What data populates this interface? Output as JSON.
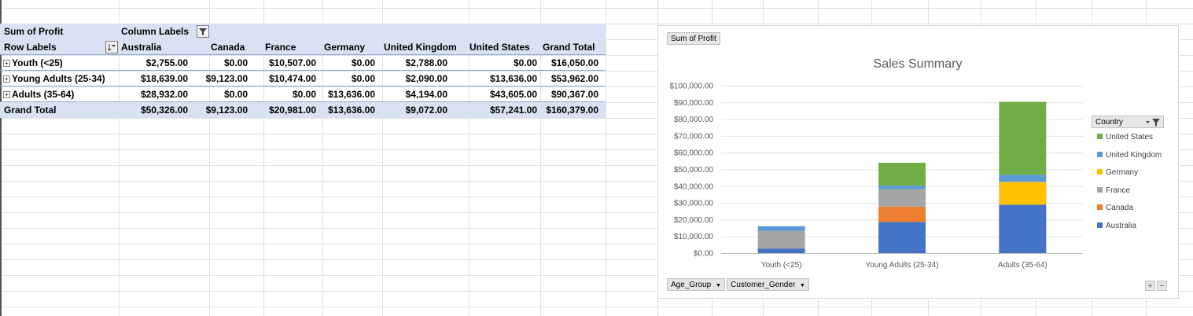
{
  "pivot": {
    "value_label": "Sum of  Profit",
    "column_labels": "Column Labels",
    "row_labels": "Row Labels",
    "columns": [
      "Australia",
      "Canada",
      "France",
      "Germany",
      "United Kingdom",
      "United States",
      "Grand Total"
    ],
    "rows": [
      {
        "label": "Youth (<25)",
        "values": [
          "$2,755.00",
          "$0.00",
          "$10,507.00",
          "$0.00",
          "$2,788.00",
          "$0.00",
          "$16,050.00"
        ]
      },
      {
        "label": "Young Adults (25-34)",
        "values": [
          "$18,639.00",
          "$9,123.00",
          "$10,474.00",
          "$0.00",
          "$2,090.00",
          "$13,636.00",
          "$53,962.00"
        ]
      },
      {
        "label": "Adults (35-64)",
        "values": [
          "$28,932.00",
          "$0.00",
          "$0.00",
          "$13,636.00",
          "$4,194.00",
          "$43,605.00",
          "$90,367.00"
        ]
      }
    ],
    "grand_total": {
      "label": "Grand Total",
      "values": [
        "$50,326.00",
        "$9,123.00",
        "$20,981.00",
        "$13,636.00",
        "$9,072.00",
        "$57,241.00",
        "$160,379.00"
      ]
    }
  },
  "chart_field_buttons": {
    "value": "Sum of  Profit",
    "axis": [
      "Age_Group",
      "Customer_Gender"
    ]
  },
  "legend_title": "Country",
  "chart_data": {
    "type": "bar",
    "stacked": true,
    "title": "Sales Summary",
    "categories": [
      "Youth (<25)",
      "Young Adults (25-34)",
      "Adults (35-64)"
    ],
    "yticks": [
      "$0.00",
      "$10,000.00",
      "$20,000.00",
      "$30,000.00",
      "$40,000.00",
      "$50,000.00",
      "$60,000.00",
      "$70,000.00",
      "$80,000.00",
      "$90,000.00",
      "$100,000.00"
    ],
    "ylim": [
      0,
      100000
    ],
    "grid": true,
    "legend_position": "right",
    "series": [
      {
        "name": "Australia",
        "color": "#4472c4",
        "values": [
          2755,
          18639,
          28932
        ]
      },
      {
        "name": "Canada",
        "color": "#ed7d31",
        "values": [
          0,
          9123,
          0
        ]
      },
      {
        "name": "France",
        "color": "#a5a5a5",
        "values": [
          10507,
          10474,
          0
        ]
      },
      {
        "name": "Germany",
        "color": "#ffc000",
        "values": [
          0,
          0,
          13636
        ]
      },
      {
        "name": "United Kingdom",
        "color": "#5b9bd5",
        "values": [
          2788,
          2090,
          4194
        ]
      },
      {
        "name": "United States",
        "color": "#70ad47",
        "values": [
          0,
          13636,
          43605
        ]
      }
    ]
  }
}
